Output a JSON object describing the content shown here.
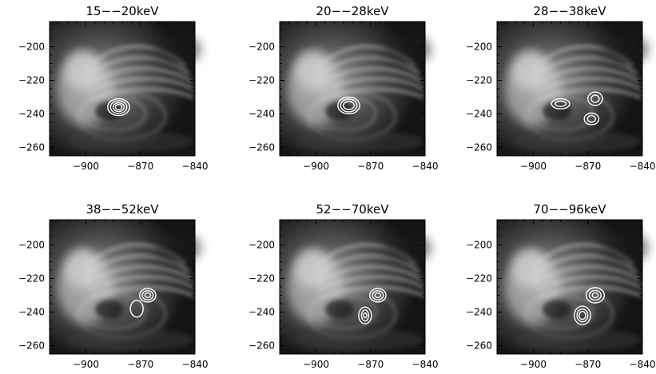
{
  "figure": {
    "panels": [
      {
        "title": "15−−20keV",
        "x_ticks": [
          "−900",
          "−870",
          "−840"
        ],
        "y_ticks": [
          "−200",
          "−220",
          "−240",
          "−260"
        ],
        "contours": [
          {
            "cx": -882,
            "cy": -236,
            "rx": [
              6,
              4.5,
              3,
              1.8
            ],
            "ry": [
              5,
              3.8,
              2.6,
              1.6
            ]
          }
        ]
      },
      {
        "title": "20−−28keV",
        "x_ticks": [
          "−900",
          "−870",
          "−840"
        ],
        "y_ticks": [
          "−200",
          "−220",
          "−240",
          "−260"
        ],
        "contours": [
          {
            "cx": -882,
            "cy": -235,
            "rx": [
              6,
              4.5,
              3
            ],
            "ry": [
              5,
              3.8,
              2.4
            ]
          }
        ]
      },
      {
        "title": "28−−38keV",
        "x_ticks": [
          "−900",
          "−870",
          "−840"
        ],
        "y_ticks": [
          "−200",
          "−220",
          "−240",
          "−260"
        ],
        "contours": [
          {
            "cx": -885,
            "cy": -234,
            "rx": [
              5,
              3
            ],
            "ry": [
              3,
              1.6
            ]
          },
          {
            "cx": -866,
            "cy": -231,
            "rx": [
              4,
              2.2
            ],
            "ry": [
              4,
              2.2
            ]
          },
          {
            "cx": -868,
            "cy": -243,
            "rx": [
              4,
              2.2
            ],
            "ry": [
              3.5,
              2
            ]
          }
        ]
      },
      {
        "title": "38−−52keV",
        "x_ticks": [
          "−900",
          "−870",
          "−840"
        ],
        "y_ticks": [
          "−200",
          "−220",
          "−240",
          "−260"
        ],
        "contours": [
          {
            "cx": -866,
            "cy": -230,
            "rx": [
              4.5,
              3,
              1.6
            ],
            "ry": [
              4,
              2.7,
              1.4
            ]
          },
          {
            "cx": -872,
            "cy": -238,
            "rx": [
              3.5
            ],
            "ry": [
              5
            ]
          }
        ]
      },
      {
        "title": "52−−70keV",
        "x_ticks": [
          "−900",
          "−870",
          "−840"
        ],
        "y_ticks": [
          "−200",
          "−220",
          "−240",
          "−260"
        ],
        "contours": [
          {
            "cx": -866,
            "cy": -230,
            "rx": [
              4.5,
              3,
              1.6
            ],
            "ry": [
              4,
              2.7,
              1.4
            ]
          },
          {
            "cx": -873,
            "cy": -242,
            "rx": [
              3.5,
              2,
              0.9
            ],
            "ry": [
              5,
              3.3,
              1.5
            ]
          }
        ]
      },
      {
        "title": "70−−96keV",
        "x_ticks": [
          "−900",
          "−870",
          "−840"
        ],
        "y_ticks": [
          "−200",
          "−220",
          "−240",
          "−260"
        ],
        "contours": [
          {
            "cx": -866,
            "cy": -230,
            "rx": [
              5,
              3.2,
              1.6
            ],
            "ry": [
              4.5,
              2.9,
              1.5
            ]
          },
          {
            "cx": -873,
            "cy": -242,
            "rx": [
              4.5,
              3,
              1.8
            ],
            "ry": [
              5.5,
              3.8,
              2.4
            ]
          }
        ]
      }
    ],
    "axes": {
      "xlim": [
        -920,
        -840
      ],
      "ylim": [
        -265,
        -185
      ],
      "x_tick_values": [
        -900,
        -870,
        -840
      ],
      "y_tick_values": [
        -200,
        -220,
        -240,
        -260
      ]
    },
    "colors": {
      "background": "#ffffff",
      "image_dark": "#111111",
      "image_light": "#d8d8d8",
      "contour": "#ffffff"
    }
  }
}
